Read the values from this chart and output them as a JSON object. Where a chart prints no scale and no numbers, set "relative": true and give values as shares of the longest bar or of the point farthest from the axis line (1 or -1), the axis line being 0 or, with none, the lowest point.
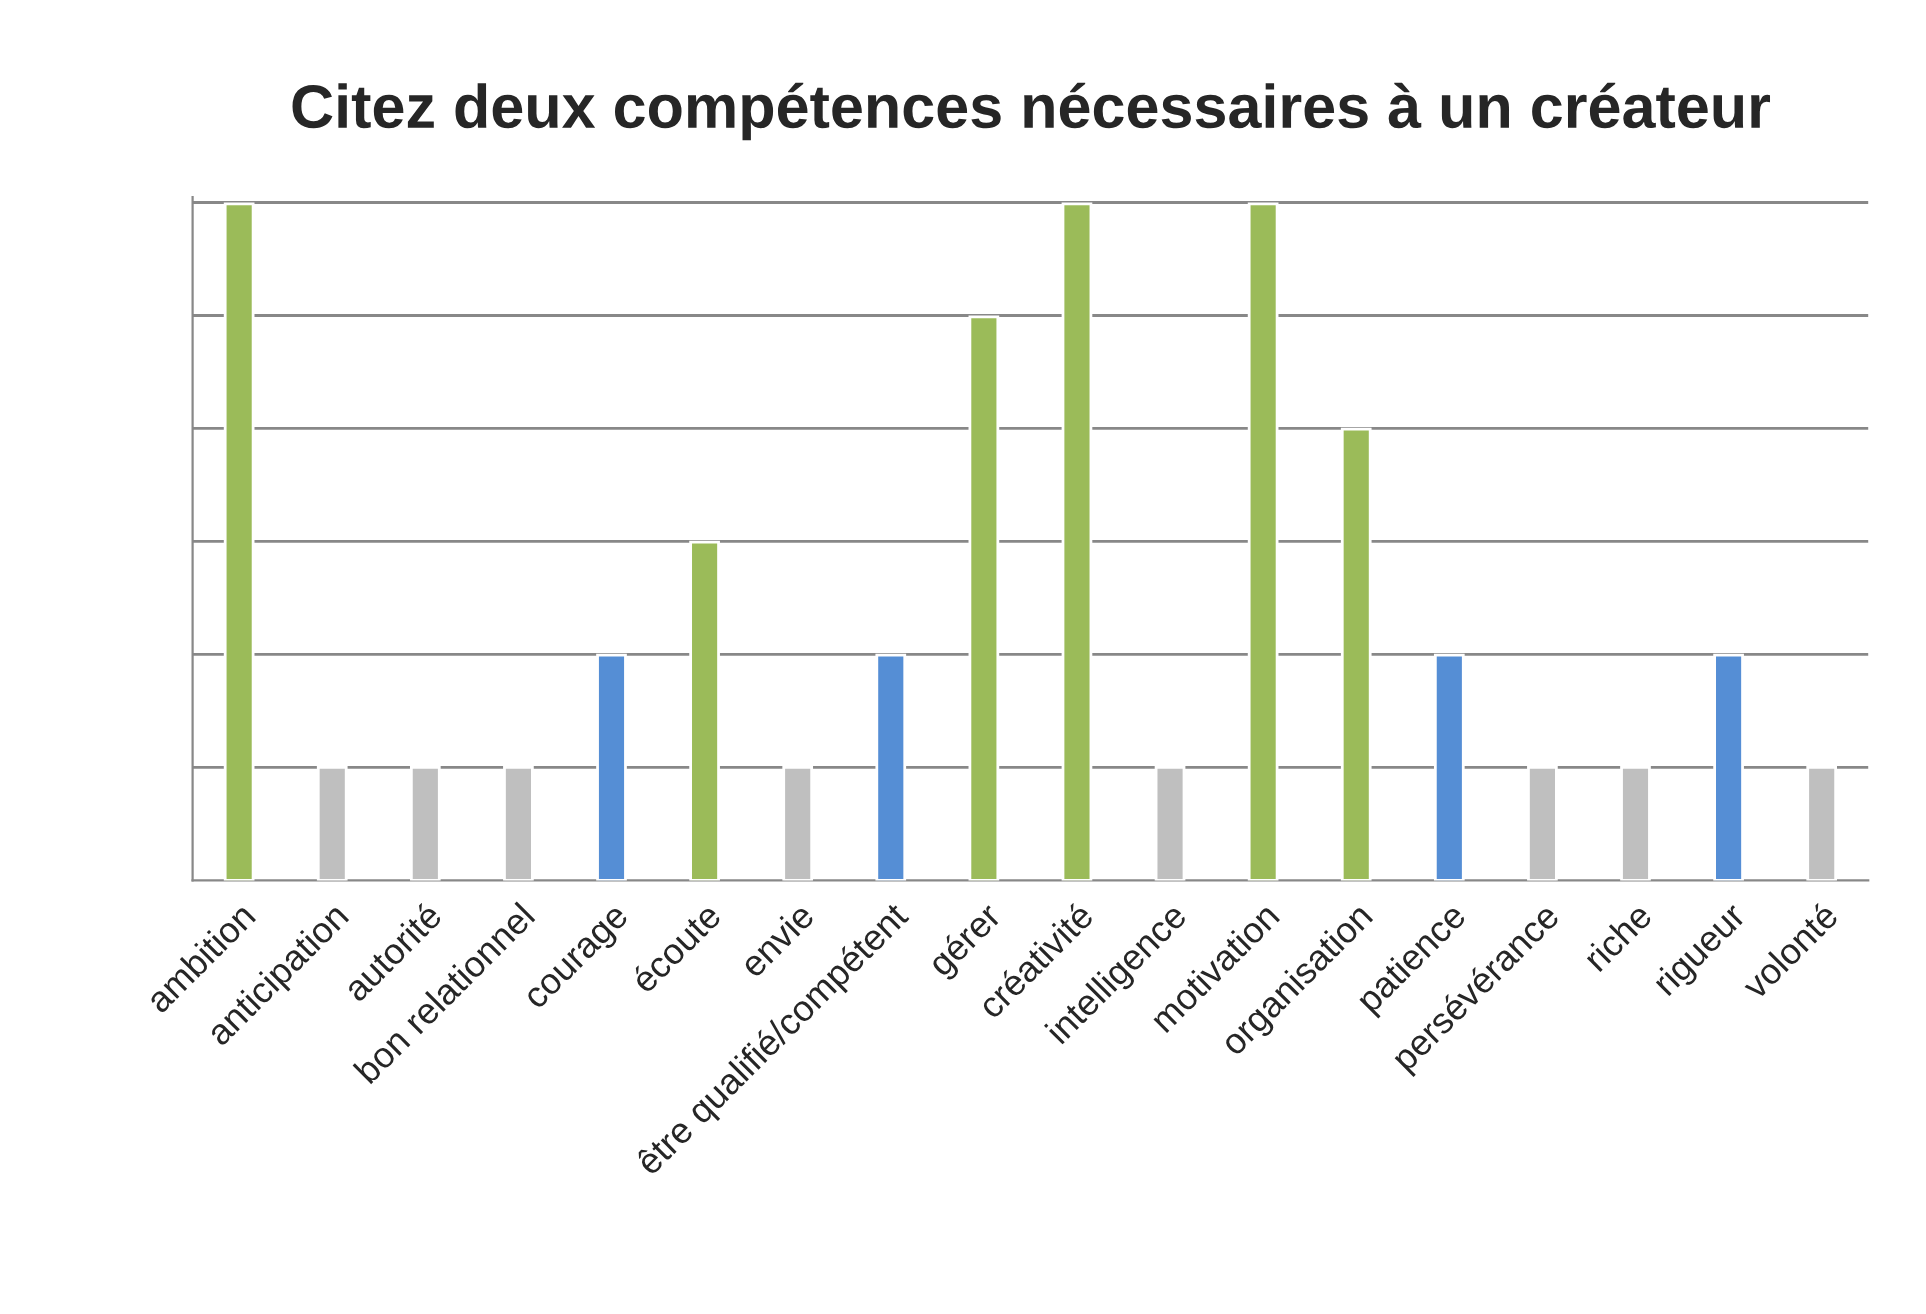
{
  "chart_data": {
    "type": "bar",
    "title": "Citez deux compétences nécessaires à un créateur",
    "relative": true,
    "grid": "y",
    "categories": [
      "ambition",
      "anticipation",
      "autorité",
      "bon relationnel",
      "courage",
      "écoute",
      "envie",
      "être qualifié/compétent",
      "gérer",
      "créativité",
      "intelligence",
      "motivation",
      "organisation",
      "patience",
      "persévérance",
      "riche",
      "rigueur",
      "volonté"
    ],
    "values": [
      1,
      0.167,
      0.167,
      0.167,
      0.333,
      0.5,
      0.167,
      0.333,
      0.833,
      1,
      0.167,
      1,
      0.667,
      0.333,
      0.167,
      0.167,
      0.333,
      0.167
    ],
    "colors": [
      "#9bbb59",
      "#bfbfbf",
      "#bfbfbf",
      "#bfbfbf",
      "#558ed5",
      "#9bbb59",
      "#bfbfbf",
      "#558ed5",
      "#9bbb59",
      "#9bbb59",
      "#bfbfbf",
      "#9bbb59",
      "#9bbb59",
      "#558ed5",
      "#bfbfbf",
      "#bfbfbf",
      "#558ed5",
      "#bfbfbf"
    ]
  }
}
